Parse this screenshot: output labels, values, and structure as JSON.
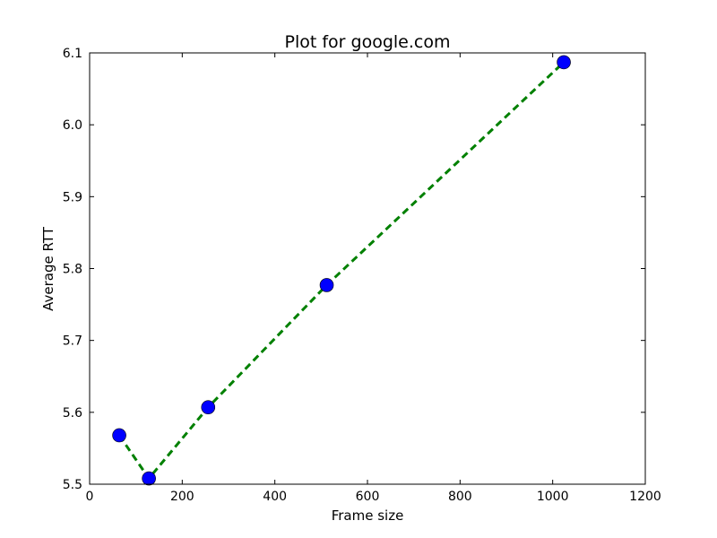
{
  "chart_data": {
    "type": "line",
    "title": "Plot for google.com",
    "xlabel": "Frame size",
    "ylabel": "Average RTT",
    "xlim": [
      0,
      1200
    ],
    "ylim": [
      5.5,
      6.1
    ],
    "x_ticks": [
      0,
      200,
      400,
      600,
      800,
      1000,
      1200
    ],
    "y_ticks": [
      5.5,
      5.6,
      5.7,
      5.8,
      5.9,
      6.0,
      6.1
    ],
    "x_tick_labels": [
      "0",
      "200",
      "400",
      "600",
      "800",
      "1000",
      "1200"
    ],
    "y_tick_labels": [
      "5.5",
      "5.6",
      "5.7",
      "5.8",
      "5.9",
      "6.0",
      "6.1"
    ],
    "grid": false,
    "series": [
      {
        "x": [
          64,
          128,
          256,
          512,
          1024
        ],
        "y": [
          5.568,
          5.508,
          5.607,
          5.777,
          6.087
        ],
        "line_color": "#008000",
        "line_style": "dashed",
        "marker_color": "#0000ff"
      }
    ]
  }
}
